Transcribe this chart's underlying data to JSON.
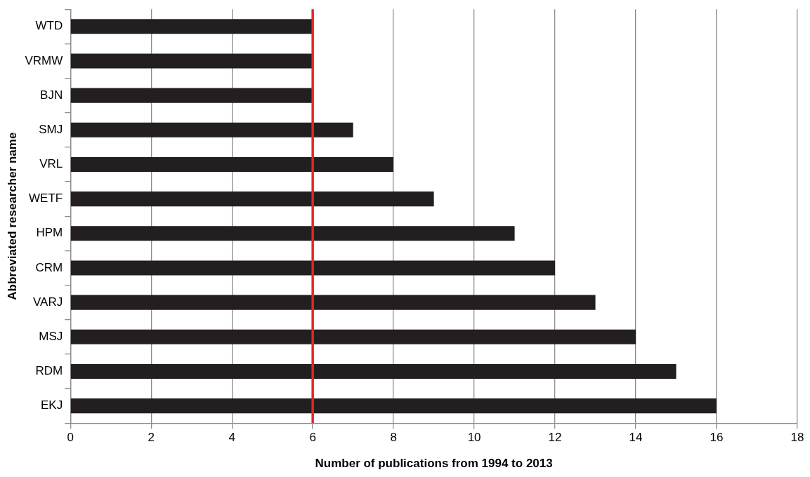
{
  "chart_data": {
    "type": "bar",
    "orientation": "horizontal",
    "xlabel": "Number of publications from 1994 to 2013",
    "ylabel": "Abbreviated researcher name",
    "categories": [
      "WTD",
      "VRMW",
      "BJN",
      "SMJ",
      "VRL",
      "WETF",
      "HPM",
      "CRM",
      "VARJ",
      "MSJ",
      "RDM",
      "EKJ"
    ],
    "values": [
      6,
      6,
      6,
      7,
      8,
      9,
      11,
      12,
      13,
      14,
      15,
      16
    ],
    "color": "#231f20",
    "xlim": [
      0,
      18
    ],
    "xticks": [
      0,
      2,
      4,
      6,
      8,
      10,
      12,
      14,
      16,
      18
    ],
    "grid": "x",
    "ref_lines": [
      {
        "axis": "x",
        "value": 6,
        "color": "#e3262b"
      }
    ]
  }
}
